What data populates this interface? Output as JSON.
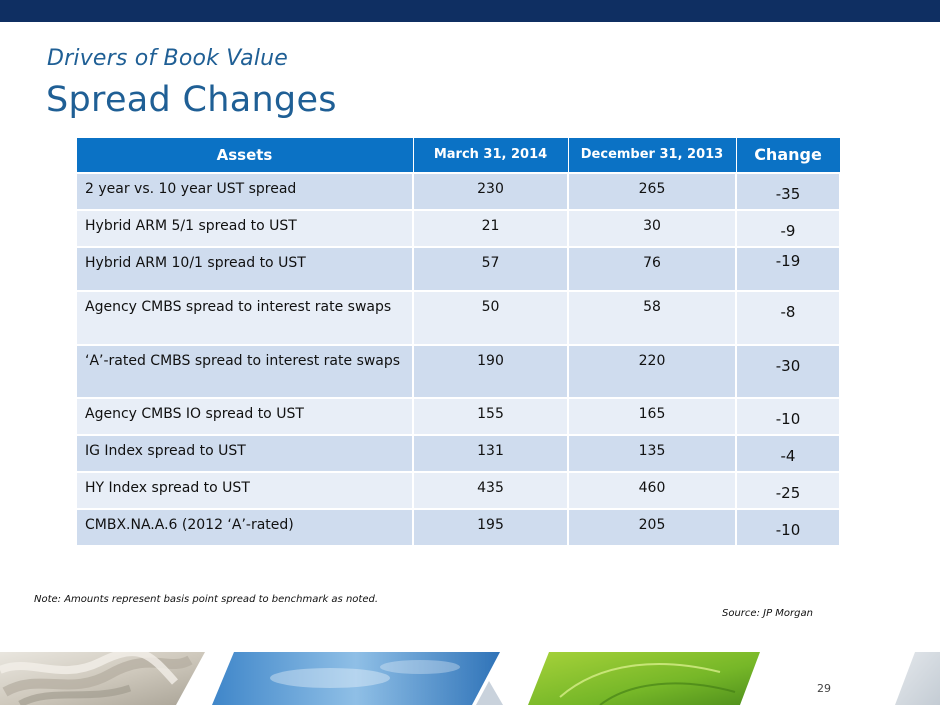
{
  "slide": {
    "subtitle": "Drivers of Book Value",
    "title": "Spread Changes",
    "note": "Note: Amounts represent basis point spread to benchmark as noted.",
    "source": "Source: JP Morgan",
    "page_number": "29"
  },
  "table": {
    "headers": [
      "Assets",
      "March 31, 2014",
      "December 31, 2013",
      "Change"
    ],
    "rows": [
      [
        "2 year vs. 10 year UST spread",
        "230",
        "265",
        "-35"
      ],
      [
        "Hybrid ARM 5/1 spread to UST",
        "21",
        "30",
        "-9"
      ],
      [
        "Hybrid ARM 10/1 spread to UST",
        "57",
        "76",
        "-19"
      ],
      [
        "Agency CMBS spread to interest rate swaps",
        "50",
        "58",
        "-8"
      ],
      [
        "‘A’-rated CMBS spread to interest rate swaps",
        "190",
        "220",
        "-30"
      ],
      [
        "Agency CMBS IO spread to UST",
        "155",
        "165",
        "-10"
      ],
      [
        "IG Index spread to UST",
        "131",
        "135",
        "-4"
      ],
      [
        "HY Index spread to UST",
        "435",
        "460",
        "-25"
      ],
      [
        "CMBX.NA.A.6 (2012 ‘A’-rated)",
        "195",
        "205",
        "-10"
      ]
    ]
  },
  "colors": {
    "top_bar": "#0f2f62",
    "title": "#1f5f95",
    "header_bg": "#0b72c5",
    "row_dark": "#cfdcee",
    "row_light": "#e8eef7"
  },
  "footer_images": [
    "rope-image",
    "sky-image",
    "leaf-image"
  ]
}
